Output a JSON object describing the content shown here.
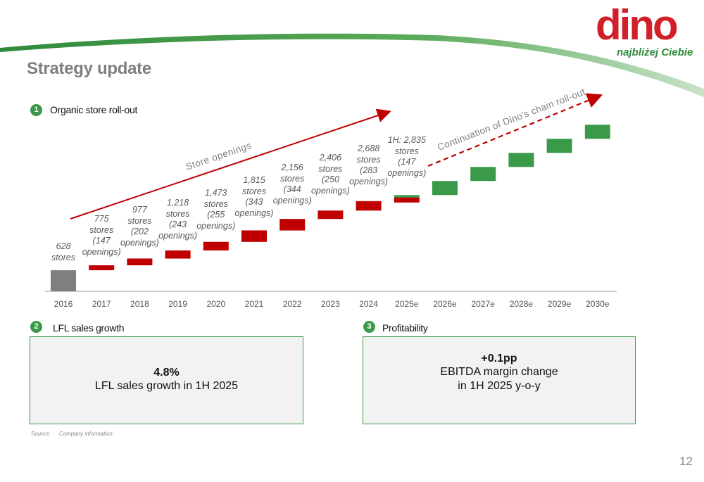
{
  "header": {
    "title": "Strategy update",
    "logo_text": "dino",
    "logo_tagline": "najbliżej Ciebie",
    "colors": {
      "green": "#3a9a4a",
      "red": "#c00000",
      "gray": "#7f7f7f",
      "brand_red": "#d2202a"
    }
  },
  "section1": {
    "number": "1",
    "label": "Organic store roll-out",
    "arrow_label_left": "Store openings",
    "arrow_label_right": "Continuation of Dino's chain roll-out"
  },
  "chart_data": {
    "type": "bar",
    "title": "",
    "categories": [
      "2016",
      "2017",
      "2018",
      "2019",
      "2020",
      "2021",
      "2022",
      "2023",
      "2024",
      "2025e",
      "2026e",
      "2027e",
      "2028e",
      "2029e",
      "2030e"
    ],
    "series": [
      {
        "values": [
          628,
          775,
          977,
          1218,
          1473,
          1815,
          2156,
          2406,
          2688,
          2835,
          null,
          null,
          null,
          null,
          null
        ]
      },
      {
        "values": [
          null,
          147,
          202,
          243,
          255,
          343,
          344,
          250,
          283,
          147,
          null,
          null,
          null,
          null,
          null
        ]
      }
    ],
    "labels": [
      [
        "628",
        "stores"
      ],
      [
        "775",
        "stores",
        "(147",
        "openings)"
      ],
      [
        "977",
        "stores",
        "(202",
        "openings)"
      ],
      [
        "1,218",
        "stores",
        "(243",
        "openings)"
      ],
      [
        "1,473",
        "stores",
        "(255",
        "openings)"
      ],
      [
        "1,815",
        "stores",
        "(343",
        "openings)"
      ],
      [
        "2,156",
        "stores",
        "(344",
        "openings)"
      ],
      [
        "2,406",
        "stores",
        "(250",
        "openings)"
      ],
      [
        "2,688",
        "stores",
        "(283",
        "openings)"
      ],
      [
        "1H: 2,835",
        "stores",
        "(147",
        "openings)"
      ]
    ],
    "grid": false
  },
  "section2": {
    "number": "2",
    "label": "LFL sales growth",
    "value": "4.8%",
    "text": "LFL sales growth in 1H 2025"
  },
  "section3": {
    "number": "3",
    "label": "Profitability",
    "value": "+0.1pp",
    "text1": "EBITDA margin change",
    "text2": "in 1H 2025 y-o-y"
  },
  "footer": {
    "source_label": "Source:",
    "source_text": "Company information",
    "page_number": "12"
  }
}
